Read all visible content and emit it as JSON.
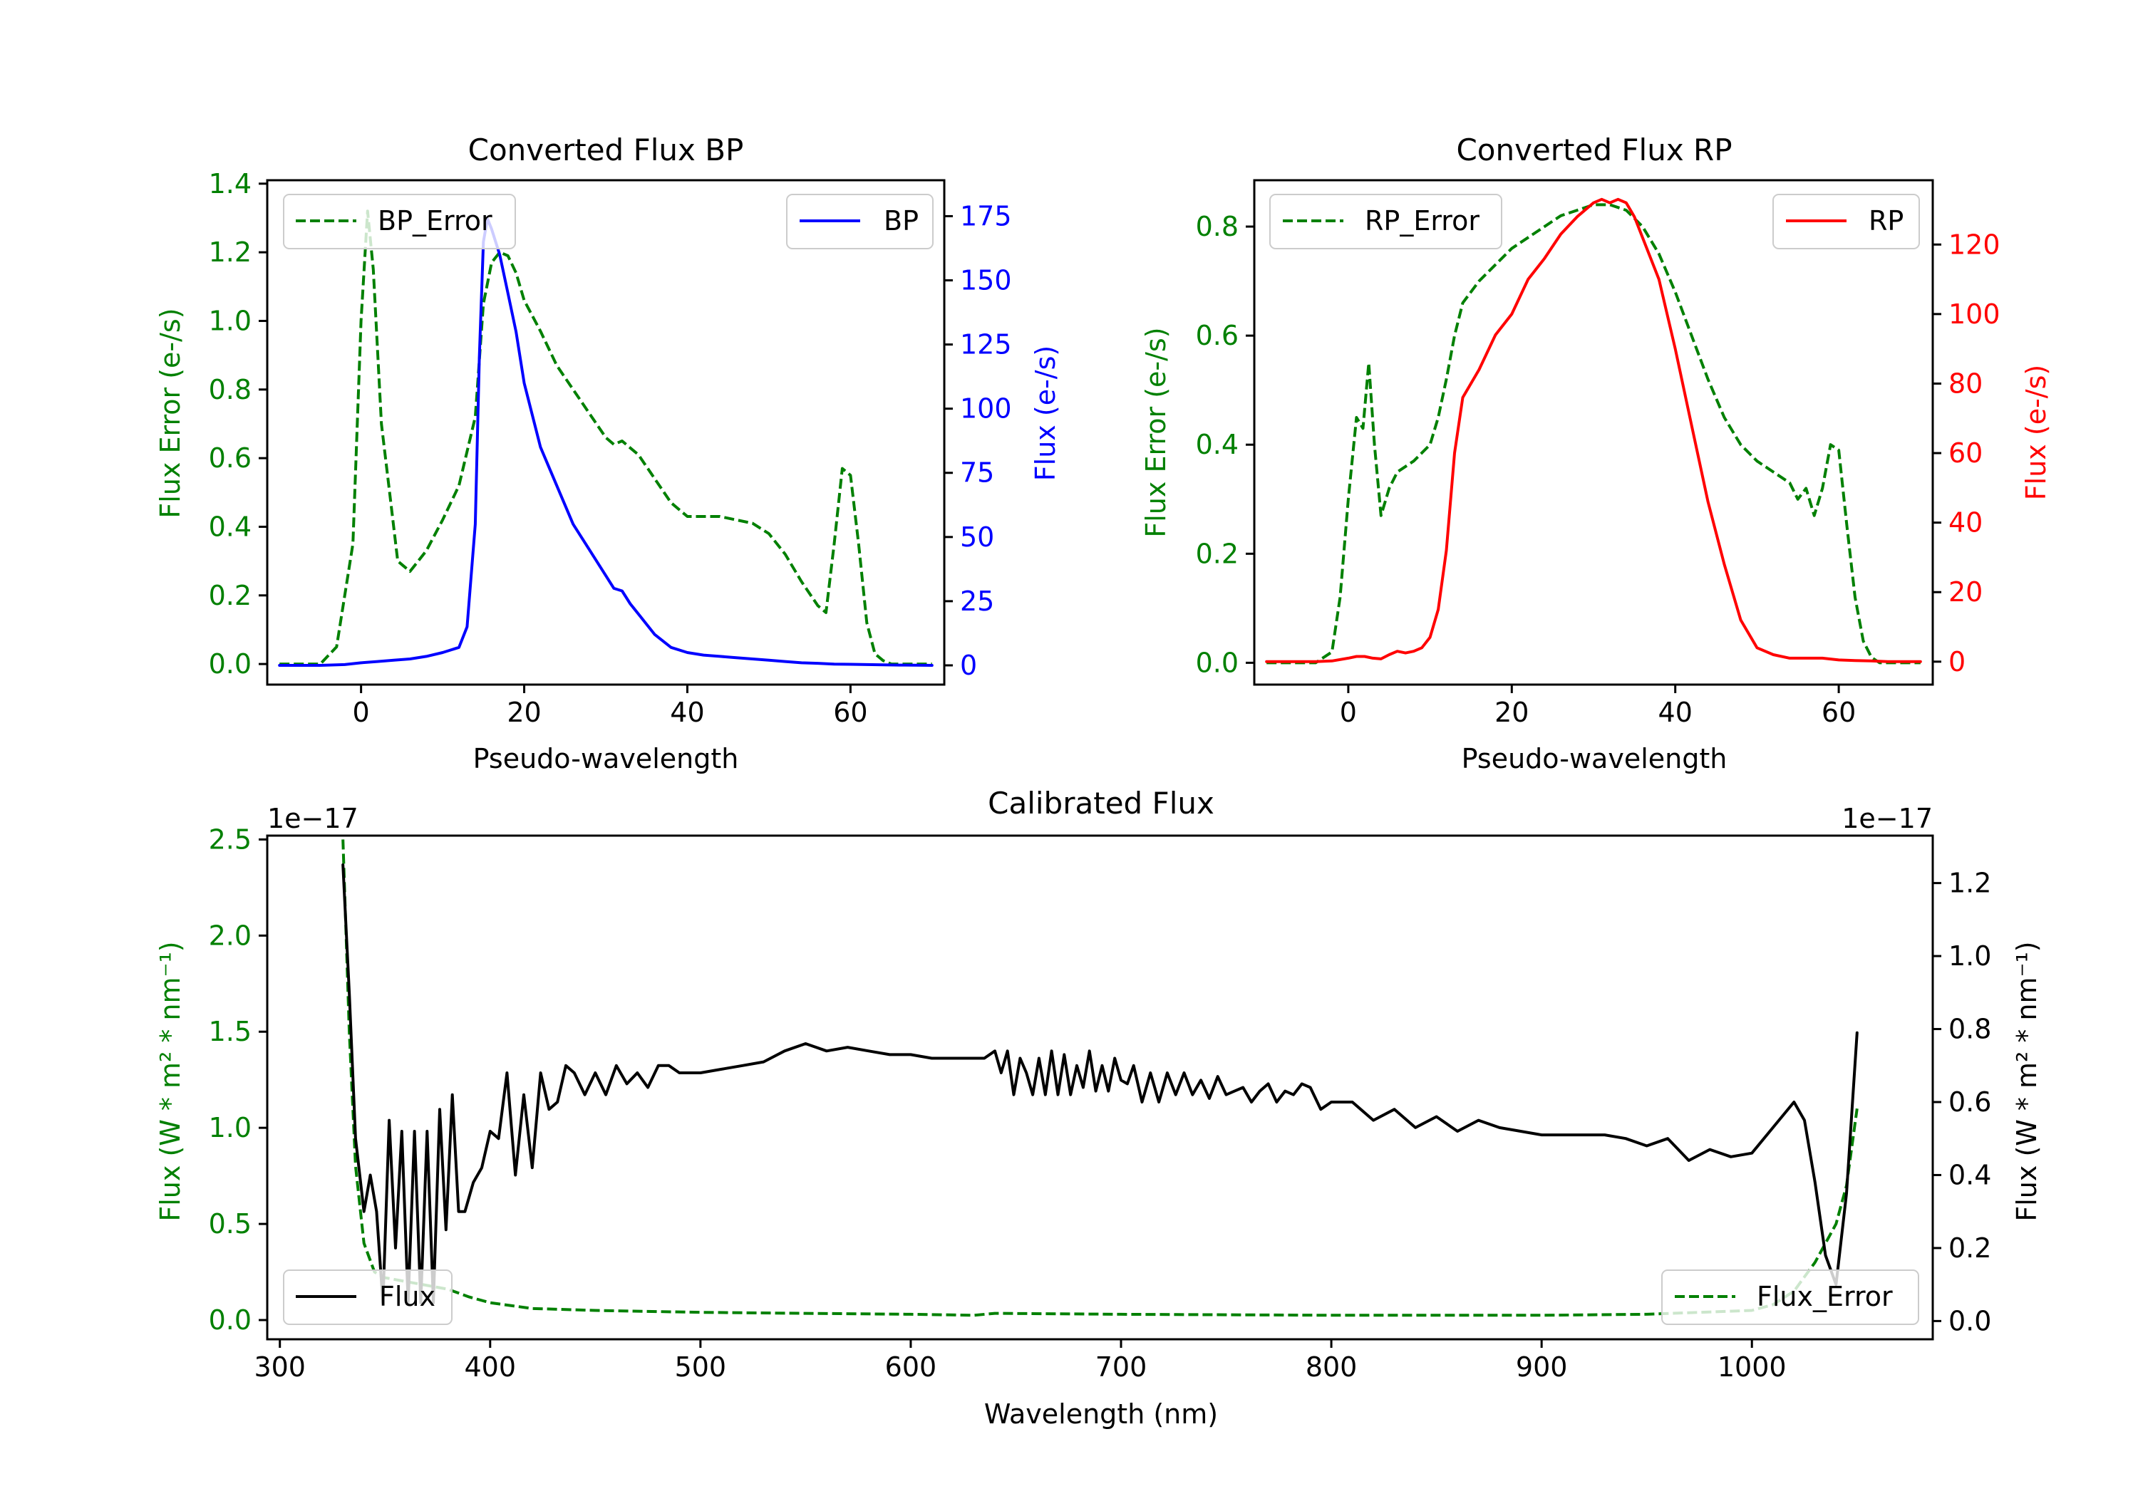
{
  "chart_data": [
    {
      "type": "line",
      "title": "Converted Flux BP",
      "xlabel": "Pseudo-wavelength",
      "ylabel_left": "Flux Error (e-/s)",
      "ylabel_right": "Flux (e-/s)",
      "xlim": [
        -11.5,
        71.5
      ],
      "ylim_left": [
        -0.06,
        1.41
      ],
      "ylim_right": [
        -7.5,
        189
      ],
      "xticks": [
        0,
        20,
        40,
        60
      ],
      "yticks_left": [
        0.0,
        0.2,
        0.4,
        0.6,
        0.8,
        1.0,
        1.2,
        1.4
      ],
      "yticks_right": [
        0,
        25,
        50,
        75,
        100,
        125,
        150,
        175
      ],
      "left_color": "#008000",
      "right_color": "#0000ff",
      "legend_left": {
        "label": "BP_Error",
        "placement": "upper-left"
      },
      "legend_right": {
        "label": "BP",
        "placement": "upper-right"
      },
      "series": [
        {
          "name": "BP_Error",
          "axis": "left",
          "style": "dashed",
          "color": "#008000",
          "x": [
            -10,
            -5,
            -3,
            -1,
            0,
            0.8,
            1.5,
            2.5,
            3.5,
            4.5,
            6,
            8,
            10,
            12,
            14,
            15,
            16,
            17,
            18,
            19,
            20,
            22,
            24,
            26,
            28,
            30,
            31,
            32,
            33,
            34,
            36,
            38,
            40,
            42,
            44,
            46,
            48,
            50,
            52,
            54,
            56,
            57,
            58,
            59,
            60,
            61,
            62,
            63,
            64,
            65,
            70
          ],
          "y": [
            0,
            0,
            0.05,
            0.35,
            1.0,
            1.32,
            1.15,
            0.7,
            0.5,
            0.3,
            0.27,
            0.33,
            0.42,
            0.52,
            0.72,
            1.05,
            1.17,
            1.2,
            1.19,
            1.14,
            1.06,
            0.97,
            0.87,
            0.8,
            0.73,
            0.66,
            0.64,
            0.65,
            0.63,
            0.61,
            0.54,
            0.47,
            0.43,
            0.43,
            0.43,
            0.42,
            0.41,
            0.38,
            0.32,
            0.24,
            0.17,
            0.15,
            0.35,
            0.57,
            0.55,
            0.35,
            0.12,
            0.03,
            0.01,
            0,
            0
          ]
        },
        {
          "name": "BP",
          "axis": "right",
          "style": "solid",
          "color": "#0000ff",
          "x": [
            -10,
            -5,
            -2,
            0,
            2,
            4,
            6,
            8,
            10,
            12,
            13,
            14,
            14.5,
            15,
            15.5,
            16,
            17,
            18,
            19,
            20,
            22,
            24,
            26,
            28,
            30,
            31,
            32,
            33,
            34,
            36,
            38,
            40,
            42,
            44,
            46,
            48,
            50,
            52,
            54,
            56,
            58,
            60,
            62,
            64,
            66,
            70
          ],
          "y": [
            0,
            0,
            0.3,
            1,
            1.5,
            2,
            2.5,
            3.5,
            5,
            7,
            15,
            55,
            120,
            165,
            174,
            170,
            160,
            145,
            130,
            110,
            85,
            70,
            55,
            45,
            35,
            30,
            29,
            24,
            20,
            12,
            7,
            5,
            4,
            3.5,
            3,
            2.5,
            2,
            1.5,
            1,
            0.8,
            0.5,
            0.4,
            0.3,
            0.2,
            0.1,
            0
          ]
        }
      ]
    },
    {
      "type": "line",
      "title": "Converted Flux RP",
      "xlabel": "Pseudo-wavelength",
      "ylabel_left": "Flux Error (e-/s)",
      "ylabel_right": "Flux (e-/s)",
      "xlim": [
        -11.5,
        71.5
      ],
      "ylim_left": [
        -0.04,
        0.885
      ],
      "ylim_right": [
        -6.6,
        138.5
      ],
      "xticks": [
        0,
        20,
        40,
        60
      ],
      "yticks_left": [
        0.0,
        0.2,
        0.4,
        0.6,
        0.8
      ],
      "yticks_right": [
        0,
        20,
        40,
        60,
        80,
        100,
        120
      ],
      "left_color": "#008000",
      "right_color": "#ff0000",
      "legend_left": {
        "label": "RP_Error",
        "placement": "upper-left"
      },
      "legend_right": {
        "label": "RP",
        "placement": "upper-right"
      },
      "series": [
        {
          "name": "RP_Error",
          "axis": "left",
          "style": "dashed",
          "color": "#008000",
          "x": [
            -10,
            -4,
            -2,
            -1,
            0,
            1,
            1.8,
            2.5,
            3.2,
            4,
            5,
            6,
            8,
            10,
            11,
            12,
            13,
            14,
            16,
            18,
            20,
            22,
            24,
            26,
            28,
            30,
            32,
            34,
            36,
            38,
            40,
            42,
            44,
            46,
            48,
            50,
            52,
            54,
            55,
            56,
            57,
            58,
            59,
            60,
            61,
            62,
            63,
            64,
            65,
            70
          ],
          "y": [
            0,
            0,
            0.02,
            0.12,
            0.3,
            0.45,
            0.43,
            0.55,
            0.4,
            0.27,
            0.32,
            0.35,
            0.37,
            0.4,
            0.45,
            0.52,
            0.6,
            0.66,
            0.7,
            0.73,
            0.76,
            0.78,
            0.8,
            0.82,
            0.83,
            0.84,
            0.84,
            0.83,
            0.8,
            0.75,
            0.68,
            0.6,
            0.52,
            0.45,
            0.4,
            0.37,
            0.35,
            0.33,
            0.3,
            0.32,
            0.27,
            0.32,
            0.4,
            0.39,
            0.25,
            0.12,
            0.04,
            0.01,
            0,
            0
          ]
        },
        {
          "name": "RP",
          "axis": "right",
          "style": "solid",
          "color": "#ff0000",
          "x": [
            -10,
            -4,
            -2,
            0,
            1,
            2,
            3,
            4,
            5,
            6,
            7,
            8,
            9,
            10,
            11,
            12,
            13,
            14,
            15,
            16,
            18,
            20,
            22,
            24,
            26,
            28,
            30,
            31,
            32,
            33,
            34,
            35,
            36,
            38,
            40,
            42,
            44,
            46,
            48,
            50,
            52,
            54,
            56,
            58,
            60,
            62,
            64,
            66,
            70
          ],
          "y": [
            0,
            0,
            0.2,
            1,
            1.5,
            1.5,
            1,
            0.8,
            2,
            3,
            2.5,
            3,
            4,
            7,
            15,
            32,
            60,
            76,
            80,
            84,
            94,
            100,
            110,
            116,
            123,
            128,
            132,
            133,
            132,
            133,
            132,
            128,
            122,
            110,
            90,
            68,
            46,
            28,
            12,
            4,
            2,
            1,
            1,
            1,
            0.5,
            0.3,
            0.2,
            0,
            0
          ]
        }
      ]
    },
    {
      "type": "line",
      "title": "Calibrated Flux",
      "xlabel": "Wavelength (nm)",
      "ylabel_left": "Flux (W * m² * nm⁻¹)",
      "ylabel_right": "Flux (W * m² * nm⁻¹)",
      "offset_left": "1e−17",
      "offset_right": "1e−17",
      "xlim": [
        294,
        1086
      ],
      "ylim_left": [
        -0.1,
        2.52
      ],
      "ylim_right": [
        -0.05,
        1.33
      ],
      "xticks": [
        300,
        400,
        500,
        600,
        700,
        800,
        900,
        1000
      ],
      "yticks_left": [
        0.0,
        0.5,
        1.0,
        1.5,
        2.0,
        2.5
      ],
      "yticks_right": [
        0.0,
        0.2,
        0.4,
        0.6,
        0.8,
        1.0,
        1.2
      ],
      "left_color": "#008000",
      "right_color": "#000000",
      "legend_left": {
        "label": "Flux",
        "placement": "lower-left"
      },
      "legend_right": {
        "label": "Flux_Error",
        "placement": "lower-right"
      },
      "series": [
        {
          "name": "Flux_Error",
          "axis": "left",
          "style": "dashed",
          "color": "#008000",
          "x": [
            330,
            333,
            336,
            340,
            345,
            350,
            360,
            370,
            380,
            390,
            400,
            420,
            450,
            500,
            550,
            600,
            630,
            640,
            700,
            800,
            900,
            950,
            1000,
            1010,
            1020,
            1030,
            1040,
            1045,
            1050
          ],
          "y": [
            2.5,
            1.5,
            0.8,
            0.4,
            0.25,
            0.22,
            0.2,
            0.18,
            0.16,
            0.12,
            0.09,
            0.06,
            0.05,
            0.04,
            0.035,
            0.03,
            0.025,
            0.035,
            0.03,
            0.025,
            0.025,
            0.03,
            0.05,
            0.08,
            0.15,
            0.3,
            0.5,
            0.7,
            1.1
          ]
        },
        {
          "name": "Flux",
          "axis": "right",
          "style": "solid",
          "color": "#000000",
          "x": [
            330,
            333,
            336,
            340,
            343,
            346,
            349,
            352,
            355,
            358,
            361,
            364,
            367,
            370,
            373,
            376,
            379,
            382,
            385,
            388,
            392,
            396,
            400,
            404,
            408,
            412,
            416,
            420,
            424,
            428,
            432,
            436,
            440,
            445,
            450,
            455,
            460,
            465,
            470,
            475,
            480,
            485,
            490,
            495,
            500,
            510,
            520,
            530,
            540,
            550,
            560,
            570,
            580,
            590,
            600,
            610,
            620,
            630,
            635,
            640,
            643,
            646,
            649,
            652,
            655,
            658,
            661,
            664,
            667,
            670,
            673,
            676,
            679,
            682,
            685,
            688,
            691,
            694,
            697,
            700,
            703,
            706,
            710,
            714,
            718,
            722,
            726,
            730,
            734,
            738,
            742,
            746,
            750,
            754,
            758,
            762,
            766,
            770,
            774,
            778,
            782,
            786,
            790,
            795,
            800,
            810,
            820,
            830,
            840,
            850,
            860,
            870,
            880,
            890,
            900,
            910,
            920,
            930,
            940,
            950,
            960,
            970,
            980,
            990,
            1000,
            1010,
            1020,
            1025,
            1030,
            1035,
            1040,
            1045,
            1050
          ],
          "y": [
            1.25,
            0.9,
            0.5,
            0.3,
            0.4,
            0.3,
            0.05,
            0.55,
            0.2,
            0.52,
            0.05,
            0.52,
            0.05,
            0.52,
            0.05,
            0.58,
            0.25,
            0.62,
            0.3,
            0.3,
            0.38,
            0.42,
            0.52,
            0.5,
            0.68,
            0.4,
            0.62,
            0.42,
            0.68,
            0.58,
            0.6,
            0.7,
            0.68,
            0.62,
            0.68,
            0.62,
            0.7,
            0.65,
            0.68,
            0.64,
            0.7,
            0.7,
            0.68,
            0.68,
            0.68,
            0.69,
            0.7,
            0.71,
            0.74,
            0.76,
            0.74,
            0.75,
            0.74,
            0.73,
            0.73,
            0.72,
            0.72,
            0.72,
            0.72,
            0.74,
            0.68,
            0.74,
            0.62,
            0.72,
            0.68,
            0.62,
            0.72,
            0.62,
            0.74,
            0.62,
            0.73,
            0.62,
            0.7,
            0.64,
            0.74,
            0.63,
            0.7,
            0.63,
            0.72,
            0.66,
            0.65,
            0.7,
            0.6,
            0.68,
            0.6,
            0.68,
            0.62,
            0.68,
            0.62,
            0.66,
            0.61,
            0.67,
            0.62,
            0.63,
            0.64,
            0.6,
            0.63,
            0.65,
            0.6,
            0.63,
            0.62,
            0.65,
            0.64,
            0.58,
            0.6,
            0.6,
            0.55,
            0.58,
            0.53,
            0.56,
            0.52,
            0.55,
            0.53,
            0.52,
            0.51,
            0.51,
            0.51,
            0.51,
            0.5,
            0.48,
            0.5,
            0.44,
            0.47,
            0.45,
            0.46,
            0.53,
            0.6,
            0.55,
            0.38,
            0.18,
            0.1,
            0.35,
            0.79
          ]
        }
      ]
    }
  ]
}
